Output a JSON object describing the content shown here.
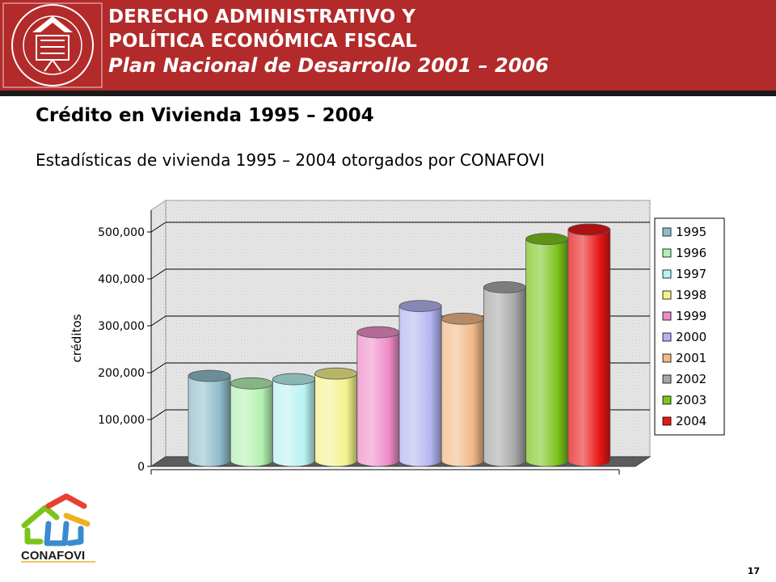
{
  "header": {
    "line1": "DERECHO ADMINISTRATIVO Y",
    "line2": "POLÍTICA ECONÓMICA FISCAL",
    "line3": "Plan Nacional de Desarrollo 2001 – 2006",
    "seal_text": "POR SIEMPRE RESPONSABLE DE LO QUE HA CULTIVADO",
    "colors": {
      "band": "#b22a2a",
      "rule": "#1a1a1a"
    }
  },
  "slide": {
    "title": "Crédito en Vivienda 1995 – 2004",
    "subtitle": "Estadísticas de vivienda 1995 – 2004 otorgados por CONAFOVI",
    "page_number": "17"
  },
  "logo": {
    "text": "CONAFOVI",
    "icon": "house-icon"
  },
  "chart_data": {
    "type": "bar",
    "categories": [
      "1995",
      "1996",
      "1997",
      "1998",
      "1999",
      "2000",
      "2001",
      "2002",
      "2003",
      "2004"
    ],
    "values": [
      181000,
      165000,
      174000,
      186000,
      274000,
      330000,
      303000,
      370000,
      473000,
      493000
    ],
    "colors": [
      "#8fbccb",
      "#b3f0b0",
      "#b8f2f2",
      "#f4f28a",
      "#f08cc8",
      "#b4b4f2",
      "#f2b886",
      "#a6a6a6",
      "#7cc41c",
      "#e81616"
    ],
    "ylabel": "créditos",
    "yticks": [
      "0",
      "100,000",
      "200,000",
      "300,000",
      "400,000",
      "500,000"
    ],
    "ylim": [
      0,
      500000
    ],
    "grid": true,
    "legend": "right"
  }
}
